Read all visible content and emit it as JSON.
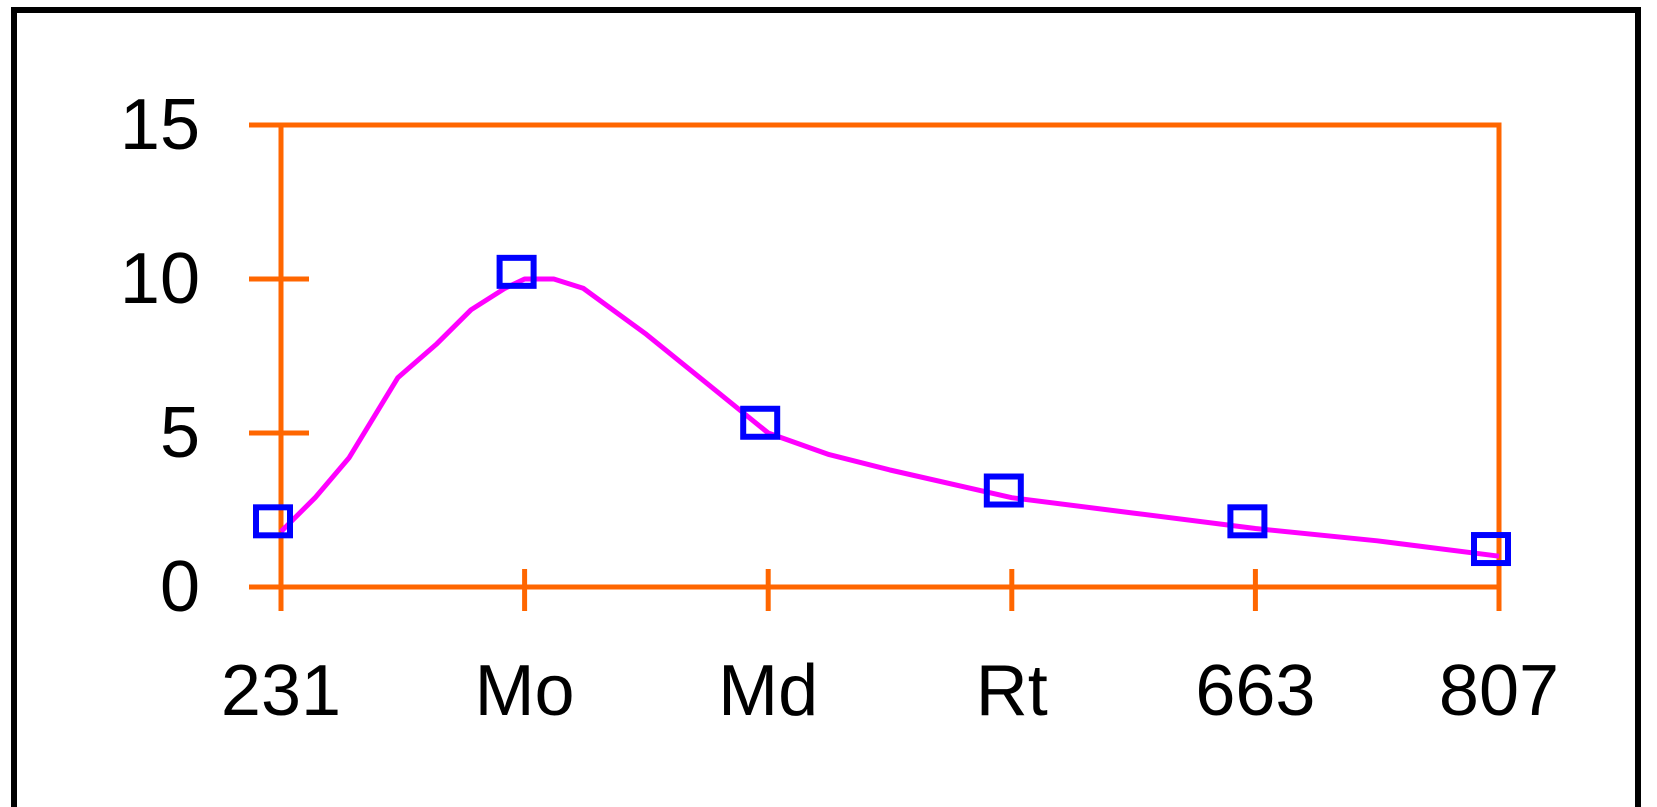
{
  "chart_data": {
    "type": "line",
    "categories": [
      "231",
      "Mo",
      "Md",
      "Rt",
      "663",
      "807"
    ],
    "y_ticks": [
      "0",
      "5",
      "10",
      "15"
    ],
    "ylim": [
      0,
      15
    ],
    "grid": false,
    "series": [
      {
        "markers": "square-open",
        "x": [
          0,
          1,
          2,
          3,
          4,
          5
        ],
        "values": [
          2.1,
          10.2,
          5.3,
          3.1,
          2.1,
          1.2
        ]
      }
    ],
    "curve": {
      "x": [
        0,
        0.14,
        0.28,
        0.48,
        0.64,
        0.78,
        0.92,
        1.0,
        1.12,
        1.24,
        1.5,
        1.75,
        2.0,
        2.25,
        2.5,
        3.0,
        3.5,
        4.0,
        4.5,
        5.0
      ],
      "y": [
        1.8,
        2.9,
        4.2,
        6.8,
        7.9,
        9.0,
        9.7,
        10.0,
        10.0,
        9.7,
        8.2,
        6.6,
        5.0,
        4.3,
        3.8,
        2.9,
        2.4,
        1.9,
        1.5,
        1.0
      ]
    },
    "colors": {
      "axis": "#ff6600",
      "line": "#ff00ff",
      "marker": "#0000ff",
      "frame": "#000000"
    }
  }
}
